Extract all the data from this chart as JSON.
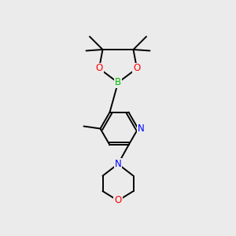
{
  "background_color": "#ebebeb",
  "bond_color": "#000000",
  "atom_colors": {
    "B": "#00bb00",
    "O": "#ff0000",
    "N": "#0000ff",
    "C": "#000000"
  },
  "figsize": [
    3.0,
    3.0
  ],
  "dpi": 100,
  "xlim": [
    0,
    10
  ],
  "ylim": [
    0,
    10
  ]
}
